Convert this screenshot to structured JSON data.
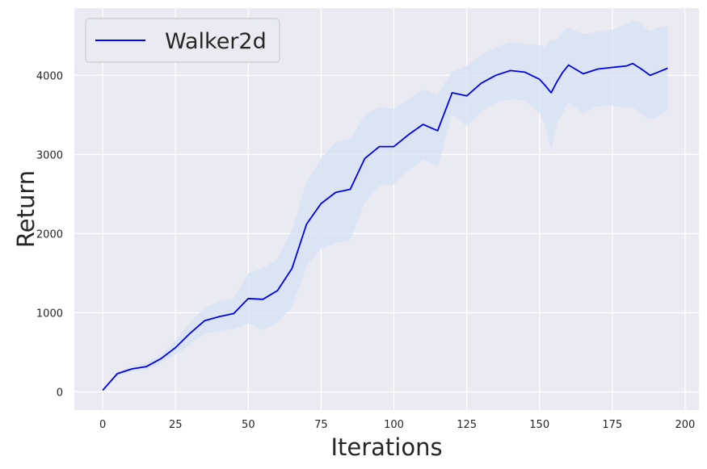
{
  "chart_data": {
    "type": "line",
    "title": "",
    "xlabel": "Iterations",
    "ylabel": "Return",
    "xlim": [
      -9.75,
      204.75
    ],
    "ylim": [
      -230,
      4850
    ],
    "xticks": [
      0,
      25,
      50,
      75,
      100,
      125,
      150,
      175,
      200
    ],
    "yticks": [
      0,
      1000,
      2000,
      3000,
      4000
    ],
    "grid": true,
    "legend": {
      "placement": "top-left",
      "entries": [
        "Walker2d"
      ]
    },
    "colors": {
      "background": "#eaeaf2",
      "grid": "#ffffff",
      "line": "#0000ee",
      "band": "#d6e2f2"
    },
    "series": [
      {
        "name": "Walker2d",
        "x": [
          0,
          5,
          10,
          15,
          20,
          25,
          30,
          35,
          40,
          45,
          50,
          55,
          60,
          65,
          70,
          75,
          80,
          85,
          90,
          95,
          100,
          105,
          110,
          115,
          120,
          125,
          130,
          135,
          140,
          145,
          150,
          152,
          154,
          156,
          158,
          160,
          165,
          170,
          175,
          180,
          182,
          185,
          188,
          190,
          194
        ],
        "y": [
          20,
          230,
          290,
          320,
          420,
          560,
          740,
          900,
          950,
          990,
          1180,
          1170,
          1280,
          1560,
          2120,
          2380,
          2520,
          2560,
          2950,
          3100,
          3100,
          3250,
          3380,
          3300,
          3780,
          3740,
          3900,
          4000,
          4060,
          4040,
          3950,
          3870,
          3780,
          3920,
          4040,
          4130,
          4020,
          4080,
          4100,
          4120,
          4150,
          4080,
          4000,
          4030,
          4090
        ],
        "upper": [
          20,
          260,
          320,
          370,
          470,
          650,
          880,
          1060,
          1140,
          1180,
          1500,
          1560,
          1680,
          2050,
          2650,
          2950,
          3160,
          3200,
          3500,
          3600,
          3580,
          3700,
          3820,
          3760,
          4050,
          4120,
          4260,
          4350,
          4420,
          4400,
          4380,
          4360,
          4450,
          4450,
          4550,
          4600,
          4520,
          4550,
          4580,
          4650,
          4700,
          4650,
          4550,
          4600,
          4620
        ],
        "lower": [
          20,
          200,
          260,
          280,
          370,
          470,
          600,
          740,
          760,
          800,
          860,
          780,
          880,
          1070,
          1590,
          1810,
          1880,
          1920,
          2400,
          2600,
          2620,
          2800,
          2940,
          2840,
          3510,
          3360,
          3540,
          3650,
          3700,
          3680,
          3520,
          3380,
          3050,
          3390,
          3530,
          3660,
          3520,
          3610,
          3620,
          3590,
          3600,
          3510,
          3450,
          3460,
          3560
        ]
      }
    ]
  }
}
